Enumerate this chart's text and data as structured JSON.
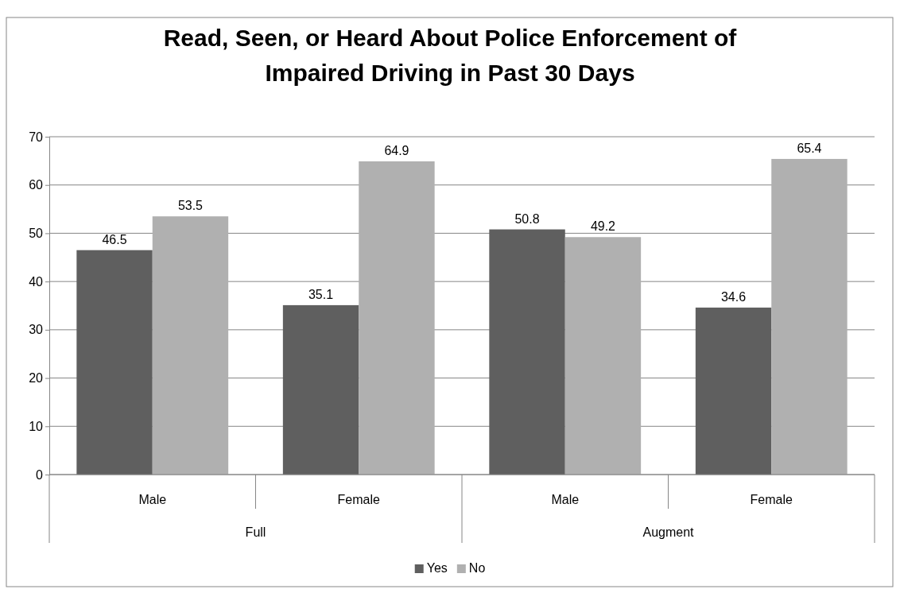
{
  "chart_data": {
    "type": "bar",
    "title": "Read, Seen, or Heard About Police Enforcement of Impaired Driving in Past 30 Days",
    "categories": [
      "Male",
      "Female",
      "Male",
      "Female"
    ],
    "series": [
      {
        "name": "Yes",
        "color": "#5f5f5f",
        "values": [
          46.5,
          35.1,
          50.8,
          34.6
        ]
      },
      {
        "name": "No",
        "color": "#b0b0b0",
        "values": [
          53.5,
          64.9,
          49.2,
          65.4
        ]
      }
    ],
    "annotations": [
      "Full",
      "Augment"
    ],
    "ylim": [
      0,
      70
    ],
    "yticks": [
      0,
      10,
      20,
      30,
      40,
      50,
      60,
      70
    ],
    "grid": "y",
    "legend": "bottom",
    "data_labels": true
  }
}
